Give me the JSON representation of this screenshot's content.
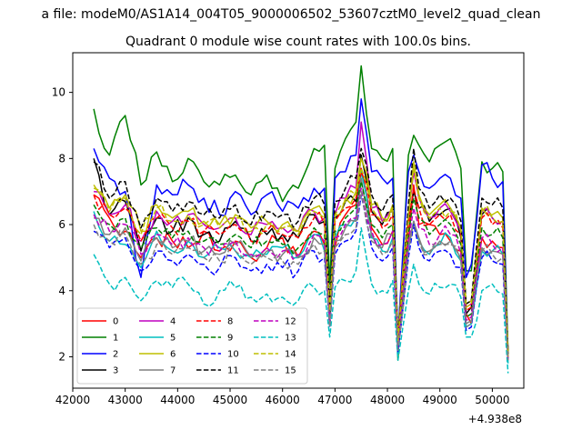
{
  "chart_data": {
    "type": "line",
    "suptitle": "a file: modeM0/AS1A14_004T05_9000006502_53607cztM0_level2_quad_clean",
    "title": "Quadrant 0 module wise count rates with 100.0s bins.",
    "xlabel": "",
    "ylabel": "",
    "x_offset_label": "+4.938e8",
    "xlim": [
      42000,
      50600
    ],
    "ylim": [
      1.05,
      11.2
    ],
    "xticks": [
      42000,
      43000,
      44000,
      45000,
      46000,
      47000,
      48000,
      49000,
      50000
    ],
    "yticks": [
      2,
      4,
      6,
      8,
      10
    ],
    "grid": false,
    "legend_position": "lower-left",
    "legend_columns": 4,
    "key_x": [
      42400,
      42700,
      43000,
      43300,
      43600,
      43900,
      44200,
      44500,
      44800,
      45100,
      45400,
      45700,
      46000,
      46300,
      46600,
      46800,
      46900,
      47000,
      47200,
      47400,
      47500,
      47700,
      47900,
      48100,
      48200,
      48400,
      48500,
      48600,
      48800,
      49000,
      49200,
      49400,
      49500,
      49600,
      49800,
      50000,
      50200,
      50300
    ],
    "series": [
      {
        "name": "0",
        "color": "#ff0000",
        "dash": "solid",
        "y_key": [
          6.9,
          6.2,
          5.8,
          5.0,
          5.6,
          5.5,
          5.3,
          5.8,
          5.2,
          5.5,
          5.0,
          5.3,
          5.6,
          5.0,
          5.8,
          5.4,
          3.6,
          5.3,
          6.3,
          6.6,
          7.7,
          5.9,
          5.4,
          5.8,
          2.2,
          5.5,
          7.2,
          6.0,
          6.0,
          5.7,
          5.5,
          5.2,
          3.3,
          3.0,
          5.6,
          5.5,
          5.3,
          2.2
        ]
      },
      {
        "name": "1",
        "color": "#008000",
        "dash": "solid",
        "y_key": [
          9.5,
          8.1,
          9.3,
          7.2,
          8.2,
          7.3,
          8.0,
          7.3,
          7.2,
          7.5,
          6.9,
          7.5,
          6.7,
          7.1,
          8.3,
          8.4,
          4.2,
          7.7,
          8.6,
          9.1,
          10.8,
          8.3,
          8.0,
          8.3,
          1.9,
          8.1,
          8.7,
          8.4,
          7.9,
          8.4,
          8.6,
          7.7,
          4.6,
          4.6,
          7.9,
          7.7,
          7.6,
          2.1
        ]
      },
      {
        "name": "2",
        "color": "#0000ff",
        "dash": "solid",
        "y_key": [
          8.3,
          7.4,
          7.0,
          4.4,
          7.2,
          6.9,
          7.2,
          6.8,
          6.3,
          7.0,
          6.3,
          6.9,
          6.4,
          6.5,
          7.1,
          7.1,
          3.3,
          7.4,
          7.6,
          8.1,
          9.8,
          7.6,
          7.4,
          7.4,
          2.6,
          7.6,
          8.1,
          7.6,
          7.1,
          7.4,
          7.4,
          6.8,
          4.4,
          4.8,
          7.8,
          7.4,
          7.3,
          1.9
        ]
      },
      {
        "name": "3",
        "color": "#000000",
        "dash": "solid",
        "y_key": [
          8.0,
          6.3,
          6.7,
          5.2,
          6.2,
          5.8,
          6.2,
          5.7,
          5.5,
          6.1,
          5.5,
          5.7,
          5.7,
          5.6,
          6.3,
          6.1,
          3.1,
          6.2,
          6.7,
          6.7,
          8.1,
          6.4,
          6.0,
          6.4,
          2.3,
          6.1,
          7.0,
          6.5,
          6.1,
          6.3,
          6.5,
          5.6,
          3.3,
          3.5,
          6.3,
          6.2,
          6.1,
          1.9
        ]
      },
      {
        "name": "4",
        "color": "#bf00bf",
        "dash": "solid",
        "y_key": [
          7.0,
          6.3,
          6.6,
          5.5,
          6.4,
          6.1,
          6.3,
          6.0,
          5.9,
          6.2,
          5.7,
          6.0,
          5.9,
          5.8,
          6.4,
          6.2,
          3.4,
          6.3,
          6.8,
          7.1,
          9.1,
          6.5,
          6.1,
          6.5,
          2.5,
          6.3,
          7.6,
          6.8,
          6.2,
          6.5,
          6.4,
          5.8,
          3.5,
          3.6,
          6.4,
          6.2,
          6.1,
          2.0
        ]
      },
      {
        "name": "5",
        "color": "#00bfbf",
        "dash": "solid",
        "y_key": [
          6.4,
          5.5,
          5.4,
          4.7,
          5.8,
          5.2,
          5.5,
          5.0,
          5.3,
          5.2,
          5.0,
          5.1,
          5.3,
          5.0,
          5.7,
          5.2,
          3.0,
          5.6,
          6.0,
          6.2,
          7.6,
          5.6,
          5.2,
          5.6,
          2.2,
          5.3,
          6.1,
          5.5,
          5.1,
          5.4,
          5.6,
          4.9,
          2.9,
          3.0,
          5.2,
          5.2,
          5.1,
          1.8
        ]
      },
      {
        "name": "6",
        "color": "#bfbf00",
        "dash": "solid",
        "y_key": [
          7.2,
          6.5,
          6.9,
          5.8,
          6.6,
          6.2,
          6.4,
          6.1,
          6.0,
          6.3,
          5.9,
          6.1,
          6.0,
          5.8,
          6.5,
          6.3,
          3.5,
          6.3,
          6.8,
          7.0,
          8.0,
          6.6,
          6.2,
          6.6,
          2.6,
          6.3,
          7.9,
          6.9,
          6.3,
          6.6,
          6.5,
          5.9,
          3.6,
          3.7,
          6.5,
          6.3,
          6.2,
          2.1
        ]
      },
      {
        "name": "7",
        "color": "#808080",
        "dash": "solid",
        "y_key": [
          6.2,
          5.7,
          5.9,
          4.9,
          5.6,
          5.3,
          5.5,
          5.2,
          5.1,
          5.4,
          5.0,
          5.2,
          5.1,
          5.0,
          5.6,
          5.4,
          3.0,
          5.5,
          5.9,
          6.1,
          7.4,
          5.7,
          5.3,
          5.7,
          2.2,
          5.4,
          6.1,
          5.6,
          5.2,
          5.5,
          5.5,
          5.0,
          3.0,
          3.1,
          5.3,
          5.2,
          5.1,
          1.9
        ]
      },
      {
        "name": "8",
        "color": "#ff0000",
        "dash": "dashed",
        "y_key": [
          6.9,
          6.3,
          6.5,
          5.5,
          6.2,
          5.9,
          6.1,
          5.8,
          5.7,
          6.0,
          5.5,
          5.8,
          5.7,
          5.6,
          6.2,
          6.0,
          3.3,
          6.1,
          6.5,
          6.8,
          7.6,
          6.3,
          5.9,
          6.3,
          2.4,
          6.0,
          7.1,
          6.5,
          6.0,
          6.3,
          6.3,
          5.7,
          3.4,
          3.5,
          6.2,
          6.0,
          5.9,
          2.0
        ]
      },
      {
        "name": "9",
        "color": "#008000",
        "dash": "dashed",
        "y_key": [
          6.6,
          6.0,
          6.2,
          5.3,
          5.9,
          5.6,
          5.8,
          5.5,
          5.4,
          5.7,
          5.3,
          5.5,
          5.4,
          5.3,
          5.9,
          5.7,
          3.2,
          5.8,
          6.2,
          6.5,
          7.3,
          6.0,
          5.6,
          6.0,
          2.3,
          5.7,
          6.8,
          6.2,
          5.7,
          6.0,
          6.0,
          5.4,
          3.2,
          3.3,
          5.9,
          5.7,
          5.6,
          2.0
        ]
      },
      {
        "name": "10",
        "color": "#0000ff",
        "dash": "dashed",
        "y_key": [
          5.8,
          5.3,
          5.6,
          4.6,
          5.2,
          4.9,
          5.1,
          4.8,
          4.7,
          5.0,
          4.6,
          4.8,
          4.7,
          4.6,
          5.2,
          5.0,
          2.9,
          5.1,
          5.5,
          5.8,
          6.9,
          5.3,
          4.9,
          5.3,
          2.1,
          5.0,
          6.0,
          5.3,
          4.9,
          5.2,
          5.1,
          4.7,
          2.8,
          2.9,
          5.0,
          4.9,
          4.8,
          1.9
        ]
      },
      {
        "name": "11",
        "color": "#000000",
        "dash": "dashed",
        "y_key": [
          7.9,
          6.8,
          7.3,
          5.9,
          6.8,
          6.4,
          6.7,
          6.3,
          6.2,
          6.6,
          6.0,
          6.4,
          6.3,
          6.1,
          6.8,
          6.6,
          3.6,
          6.7,
          7.1,
          7.4,
          8.3,
          6.9,
          6.4,
          6.9,
          2.6,
          6.6,
          8.3,
          7.1,
          6.5,
          6.9,
          6.8,
          6.1,
          3.6,
          3.7,
          6.8,
          6.6,
          6.5,
          2.1
        ]
      },
      {
        "name": "12",
        "color": "#bf00bf",
        "dash": "dashed",
        "y_key": [
          6.3,
          5.8,
          6.0,
          5.1,
          5.7,
          5.4,
          5.6,
          5.3,
          5.2,
          5.5,
          5.1,
          5.3,
          5.2,
          5.1,
          5.7,
          5.5,
          3.1,
          5.6,
          6.0,
          6.2,
          7.1,
          5.8,
          5.4,
          5.8,
          2.3,
          5.5,
          6.5,
          5.9,
          5.4,
          5.7,
          5.7,
          5.1,
          3.1,
          3.2,
          5.6,
          5.4,
          5.3,
          1.9
        ]
      },
      {
        "name": "13",
        "color": "#00bfbf",
        "dash": "dashed",
        "y_key": [
          5.1,
          4.2,
          4.4,
          3.7,
          4.3,
          4.1,
          4.2,
          3.6,
          4.0,
          4.1,
          3.8,
          3.9,
          3.8,
          3.7,
          4.1,
          4.0,
          2.6,
          4.1,
          4.3,
          4.6,
          5.9,
          4.2,
          4.0,
          4.3,
          1.9,
          4.0,
          4.8,
          4.2,
          3.9,
          4.1,
          4.2,
          3.8,
          2.6,
          2.6,
          4.0,
          4.2,
          3.9,
          1.5
        ]
      },
      {
        "name": "14",
        "color": "#bfbf00",
        "dash": "dashed",
        "y_key": [
          7.1,
          6.4,
          6.8,
          5.7,
          6.5,
          6.1,
          6.3,
          6.0,
          5.9,
          6.2,
          5.8,
          6.0,
          5.9,
          5.7,
          6.4,
          6.2,
          3.4,
          6.3,
          6.7,
          6.9,
          7.7,
          6.5,
          6.1,
          6.5,
          2.5,
          6.2,
          7.7,
          6.8,
          6.2,
          6.5,
          6.4,
          5.8,
          3.5,
          3.6,
          6.4,
          6.2,
          6.1,
          2.0
        ]
      },
      {
        "name": "15",
        "color": "#808080",
        "dash": "dashed",
        "y_key": [
          6.0,
          5.5,
          5.7,
          4.8,
          5.4,
          5.1,
          5.3,
          5.0,
          4.9,
          5.2,
          4.8,
          5.0,
          4.9,
          4.8,
          5.4,
          5.2,
          2.9,
          5.3,
          5.7,
          5.9,
          7.0,
          5.5,
          5.1,
          5.5,
          2.2,
          5.2,
          6.1,
          5.5,
          5.1,
          5.4,
          5.4,
          4.9,
          2.9,
          3.0,
          5.2,
          5.1,
          5.0,
          1.9
        ]
      }
    ]
  }
}
